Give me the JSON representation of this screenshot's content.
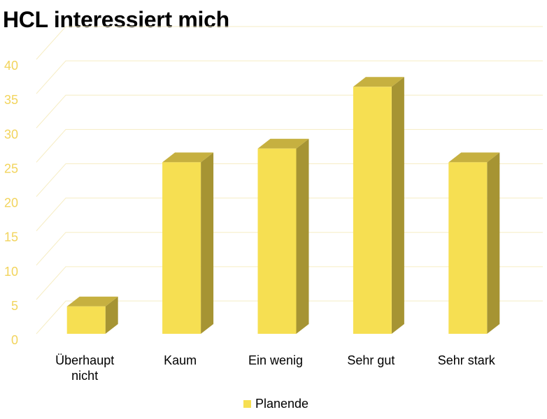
{
  "chart_data": {
    "type": "bar",
    "title": "HCL interessiert mich",
    "categories": [
      [
        "Überhaupt",
        "nicht"
      ],
      [
        "Kaum"
      ],
      [
        "Ein wenig"
      ],
      [
        "Sehr gut"
      ],
      [
        "Sehr stark"
      ]
    ],
    "series": [
      {
        "name": "Planende",
        "values": [
          4,
          25,
          27,
          36,
          25
        ]
      }
    ],
    "ylim": [
      0,
      40
    ],
    "yticks": [
      0,
      5,
      10,
      15,
      20,
      25,
      30,
      35,
      40
    ],
    "grid": true,
    "legend_position": "bottom",
    "three_d": true
  },
  "colors": {
    "bar_front": "#f6df52",
    "bar_top": "#c6b040",
    "bar_side": "#a69433",
    "grid": "#f6edc4",
    "tick": "#f2d45c"
  }
}
